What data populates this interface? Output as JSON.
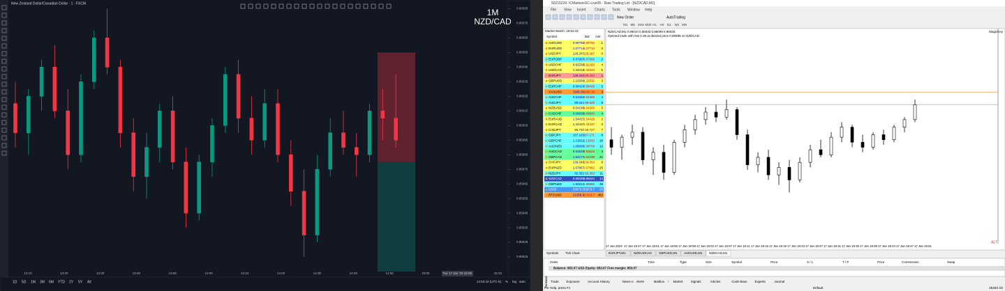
{
  "tv": {
    "title": "New Zealand Dollar/Canadian Dollar · 1 · FXCM",
    "watermark": [
      "1M",
      "NZD/CAD"
    ],
    "time_labels": [
      "13:10",
      "13:20",
      "13:30",
      "13:40",
      "13:50",
      "14:00",
      "14:10",
      "14:20",
      "14:30",
      "14:40",
      "14:50",
      "15:00",
      null,
      "15:20"
    ],
    "crosshair_time": "Tue 17 Jan '23 15:09",
    "timeframes": [
      "1D",
      "5D",
      "1M",
      "3M",
      "6M",
      "YTD",
      "1Y",
      "5Y",
      "All"
    ],
    "clock": "14:52:42 (UTC-5)",
    "scale_buttons": [
      "%",
      "log",
      "auto"
    ]
  },
  "chart_data": [
    {
      "type": "candlestick",
      "ylim": [
        0.85905,
        0.8609
      ],
      "yticks": [
        0.86085,
        0.86075,
        0.86065,
        0.86055,
        0.86045,
        0.86035,
        0.86025,
        0.86015,
        0.86005,
        0.85995,
        0.85985,
        0.85975,
        0.85965,
        0.85955,
        0.85945,
        0.85935,
        0.85925,
        0.85915
      ],
      "up_color": "#089981",
      "down_color": "#f23645",
      "open": [
        0.8602,
        0.86,
        0.86025,
        0.86045,
        0.86015,
        0.85985,
        0.86035,
        0.86065,
        0.86045,
        0.86,
        0.8597,
        0.8599,
        0.86015,
        0.8598,
        0.85945,
        0.8598,
        0.86005,
        0.8604,
        0.8601,
        0.85995,
        0.8602,
        0.85985,
        0.8596,
        0.8593,
        0.85975,
        0.86,
        0.8599,
        0.85985,
        0.86015,
        0.8601
      ],
      "high": [
        0.86035,
        0.8603,
        0.8605,
        0.8606,
        0.8603,
        0.8604,
        0.8607,
        0.86085,
        0.8605,
        0.8601,
        0.86,
        0.8602,
        0.86025,
        0.8599,
        0.85985,
        0.8601,
        0.86045,
        0.8605,
        0.86025,
        0.8603,
        0.8603,
        0.85995,
        0.85975,
        0.85985,
        0.8601,
        0.86015,
        0.86,
        0.8602,
        0.8603,
        0.8604
      ],
      "low": [
        0.8599,
        0.85985,
        0.86015,
        0.8601,
        0.85975,
        0.8598,
        0.8603,
        0.8604,
        0.8599,
        0.8596,
        0.85955,
        0.8598,
        0.85975,
        0.85935,
        0.8594,
        0.8597,
        0.86,
        0.86,
        0.85985,
        0.8599,
        0.8598,
        0.8595,
        0.85915,
        0.85925,
        0.8597,
        0.85985,
        0.8597,
        0.8598,
        0.85995,
        0.8599
      ],
      "close": [
        0.86,
        0.86025,
        0.86045,
        0.86015,
        0.85985,
        0.86035,
        0.86065,
        0.86045,
        0.86,
        0.8597,
        0.8599,
        0.86015,
        0.8598,
        0.85945,
        0.8598,
        0.86005,
        0.8604,
        0.8601,
        0.85995,
        0.8602,
        0.85985,
        0.8596,
        0.8593,
        0.85975,
        0.86,
        0.8599,
        0.85985,
        0.86015,
        0.8601,
        0.85995
      ],
      "position": {
        "stop": 0.86055,
        "entry": 0.8598,
        "target": 0.85905,
        "stop_color": "#f23645",
        "target_color": "#089981"
      }
    },
    {
      "type": "candlestick",
      "ylim": [
        0.8576,
        0.8618
      ],
      "up_color": "#ffffff",
      "down_color": "#000000",
      "wick_color": "#000000",
      "open": [
        0.8596,
        0.85945,
        0.85965,
        0.85975,
        0.8592,
        0.85935,
        0.85895,
        0.85955,
        0.8598,
        0.86,
        0.86015,
        0.86005,
        0.8602,
        0.8597,
        0.8591,
        0.85925,
        0.8589,
        0.85905,
        0.8588,
        0.85915,
        0.8594,
        0.8593,
        0.85965,
        0.85985,
        0.85955,
        0.85945,
        0.8597,
        0.8596,
        0.85985,
        0.86
      ],
      "high": [
        0.85985,
        0.8597,
        0.8599,
        0.85985,
        0.85945,
        0.8595,
        0.8596,
        0.8599,
        0.8601,
        0.86025,
        0.8603,
        0.8604,
        0.86025,
        0.8598,
        0.85935,
        0.8594,
        0.85915,
        0.8592,
        0.85925,
        0.8595,
        0.8596,
        0.85975,
        0.85995,
        0.8599,
        0.8597,
        0.85975,
        0.8598,
        0.8599,
        0.86005,
        0.8604
      ],
      "low": [
        0.8593,
        0.8592,
        0.8595,
        0.8591,
        0.8589,
        0.8588,
        0.8589,
        0.85945,
        0.8597,
        0.8599,
        0.85995,
        0.86,
        0.8596,
        0.859,
        0.85895,
        0.8588,
        0.8587,
        0.85855,
        0.85875,
        0.85905,
        0.85925,
        0.85925,
        0.85955,
        0.85945,
        0.85935,
        0.8594,
        0.8595,
        0.85955,
        0.85975,
        0.85995
      ],
      "close": [
        0.85945,
        0.85965,
        0.85975,
        0.8592,
        0.85935,
        0.85895,
        0.85955,
        0.8598,
        0.86,
        0.86015,
        0.86005,
        0.8602,
        0.8597,
        0.8591,
        0.85925,
        0.8589,
        0.85905,
        0.8588,
        0.85915,
        0.8594,
        0.8593,
        0.85965,
        0.85985,
        0.85955,
        0.85945,
        0.8597,
        0.8596,
        0.85985,
        0.86,
        0.8603
      ],
      "levels": [
        {
          "value": 0.86055,
          "color": "#ff7f27"
        },
        {
          "value": 0.8603,
          "color": "#b0b0b0"
        }
      ]
    }
  ],
  "mt4": {
    "title": "50215226: ICMarketsSC-Live05 - Raw Trading Ltd - [NZDCAD,M1]",
    "menu": [
      "File",
      "View",
      "Insert",
      "Charts",
      "Tools",
      "Window",
      "Help"
    ],
    "new_order": "New Order",
    "autotrading": "AutoTrading",
    "periods": [
      "M1",
      "M5",
      "M15",
      "M30",
      "H1",
      "H4",
      "D1",
      "W1",
      "MN"
    ],
    "market_watch": {
      "title": "Market Watch: 18:52:43",
      "headers": [
        "Symbol",
        "Bid",
        "Ask"
      ],
      "rows": [
        [
          "AUDUSD",
          "0.69782",
          "0.69792",
          "1",
          "#ffff66"
        ],
        [
          "EURUSD",
          "1.07714",
          "1.07714",
          "0",
          "#ffff66"
        ],
        [
          "USDJPY",
          "128.287",
          "128.287",
          "0",
          "#ffff66"
        ],
        [
          "EURGBP",
          "0.87967",
          "0.87969",
          "2",
          "#66ffff"
        ],
        [
          "USDCHF",
          "0.92256",
          "0.92260",
          "4",
          "#ffff66"
        ],
        [
          "USDCAD",
          "1.34018",
          "1.34023",
          "5",
          "#ffff66"
        ],
        [
          "EURJPY",
          "138.261",
          "138.262",
          "1",
          "#ff9999"
        ],
        [
          "GBPUSD",
          "1.22508",
          "1.22511",
          "3",
          "#ffff66"
        ],
        [
          "EURCHF",
          "0.99424",
          "0.99429",
          "5",
          "#66ffff"
        ],
        [
          "XAUUSD",
          "1906.36",
          "1906.39",
          "3",
          "#ff9933"
        ],
        [
          "AUDCHF",
          "0.64381",
          "0.64385",
          "4",
          "#66ffff"
        ],
        [
          "AUDJPY",
          "89.524",
          "89.529",
          "5",
          "#66ffff"
        ],
        [
          "NZDUSD",
          "0.64195",
          "0.64200",
          "5",
          "#ffff66"
        ],
        [
          "CADCHF",
          "0.68838",
          "0.68842",
          "4",
          "#66ff99"
        ],
        [
          "EURAUD",
          "1.54427",
          "1.54429",
          "2",
          "#ffff66"
        ],
        [
          "EURCAD",
          "1.44437",
          "1.44437",
          "0",
          "#ffff66"
        ],
        [
          "CADJPY",
          "95.720",
          "95.727",
          "7",
          "#ffff66"
        ],
        [
          "GBPJPY",
          "157.163",
          "157.171",
          "8",
          "#66ffff"
        ],
        [
          "GBPCHF",
          "1.13022",
          "1.13032",
          "10",
          "#66ffff"
        ],
        [
          "AUDNZD",
          "1.08696",
          "1.08708",
          "12",
          "#66ffff"
        ],
        [
          "AUDCAD",
          "0.93520",
          "0.93524",
          "4",
          "#66ff99"
        ],
        [
          "GBPCAD",
          "1.64177",
          "1.64198",
          "21",
          "#66ff99"
        ],
        [
          "CHFJPY",
          "139.048",
          "139.054",
          "6",
          "#ffff66"
        ],
        [
          "EURNZD",
          "1.67867",
          "1.67892",
          "25",
          "#ffff66"
        ],
        [
          "NZDJPY",
          "82.352",
          "82.363",
          "11",
          "#66ffff"
        ],
        [
          "NZDCAD",
          "0.86030",
          "0.86044",
          "14",
          "#2f4fc0"
        ],
        [
          "GBPNZD",
          "1.90812",
          "1.90850",
          "38",
          "#66ffff"
        ],
        [
          "US30",
          "33973.7",
          "33975.7",
          "20",
          "#4499ff"
        ],
        [
          "BTCUSD",
          "21308.9",
          "21313.7",
          "482",
          "#ff9933"
        ]
      ],
      "tabs": [
        "Symbols",
        "Tick Chart"
      ]
    },
    "chart_header": [
      "NZDCAD,M1  0.86010 0.86032 0.86009 0.86030",
      "Opened trade with lots 0.38 at desired price 0.85985 on NZDCAD"
    ],
    "expert": "MagicKey",
    "alt": "ALT",
    "x_labels": [
      "17 Jan 2023",
      "17 Jan 18:47",
      "17 Jan 18:51",
      "17 Jan 18:55",
      "17 Jan 18:59",
      "17 Jan 19:03",
      "17 Jan 19:07",
      "17 Jan 19:11",
      "17 Jan 19:15",
      "17 Jan 19:19",
      "17 Jan 19:23",
      "17 Jan 19:27",
      "17 Jan 19:31",
      "17 Jan 19:35",
      "17 Jan 19:39",
      "17 Jan 19:43",
      "17 Jan 19:47",
      "17 Jan 19:51"
    ],
    "chart_tabs": [
      "EURJPY,M1",
      "NZDUSD,H4",
      "GBPUSD,M1",
      "AUDUSD,M1",
      "NZDCAD,M1"
    ],
    "terminal": {
      "label": "Terminal",
      "columns": [
        "Order",
        "Time",
        "Type",
        "Size",
        "Symbol",
        "Price",
        "S / L",
        "T / P",
        "Price",
        "Commission",
        "Swap"
      ],
      "balance": "Balance: 853.07 USD  Equity: 853.07  Free margin: 853.07",
      "tabs": [
        "Trade",
        "Exposure",
        "Account History",
        "News",
        "Alerts",
        "Mailbox",
        "Market",
        "Signals",
        "Articles",
        "Code Base",
        "Experts",
        "Journal"
      ],
      "news_badge": "99",
      "mailbox_badge": "7"
    },
    "status": [
      "For Help, press F1",
      "Default",
      "2545/1 kb"
    ]
  }
}
